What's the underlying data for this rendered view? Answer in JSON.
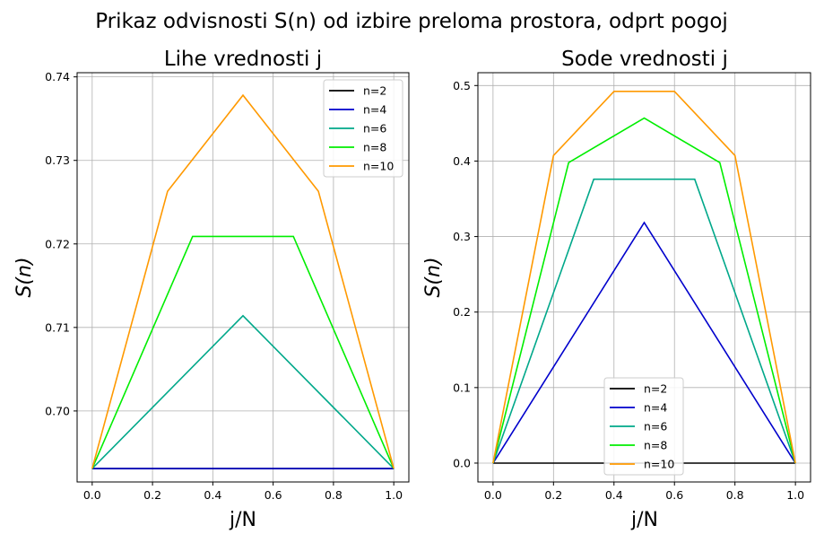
{
  "figure": {
    "suptitle": "Prikaz odvisnosti S(n) od izbire preloma prostora, odprt pogoj"
  },
  "chart_data": [
    {
      "type": "line",
      "title": "Lihe vrednosti j",
      "xlabel": "j/N",
      "ylabel": "S(n)",
      "xlim": [
        -0.05,
        1.05
      ],
      "ylim": [
        0.6915,
        0.7405
      ],
      "xticks": [
        "0.0",
        "0.2",
        "0.4",
        "0.6",
        "0.8",
        "1.0"
      ],
      "yticks": [
        "0.70",
        "0.71",
        "0.72",
        "0.73",
        "0.74"
      ],
      "ytick_values": [
        0.7,
        0.71,
        0.72,
        0.73,
        0.74
      ],
      "xtick_values": [
        0,
        0.2,
        0.4,
        0.6,
        0.8,
        1.0
      ],
      "grid": true,
      "legend_position": "top-right",
      "series": [
        {
          "name": "n=2",
          "color": "#000000",
          "x": [
            0,
            1
          ],
          "y": [
            0.6931,
            0.6931
          ]
        },
        {
          "name": "n=4",
          "color": "#0000cc",
          "x": [
            0,
            0.5,
            1
          ],
          "y": [
            0.6931,
            0.6931,
            0.6931
          ]
        },
        {
          "name": "n=6",
          "color": "#00a88a",
          "x": [
            0,
            0.5,
            1
          ],
          "y": [
            0.6931,
            0.7114,
            0.6931
          ]
        },
        {
          "name": "n=8",
          "color": "#00ee00",
          "x": [
            0,
            0.333,
            0.667,
            1
          ],
          "y": [
            0.6931,
            0.7209,
            0.7209,
            0.6931
          ]
        },
        {
          "name": "n=10",
          "color": "#ff9900",
          "x": [
            0,
            0.25,
            0.5,
            0.75,
            1
          ],
          "y": [
            0.6931,
            0.7263,
            0.7378,
            0.7263,
            0.6931
          ]
        }
      ]
    },
    {
      "type": "line",
      "title": "Sode vrednosti j",
      "xlabel": "j/N",
      "ylabel": "S(n)",
      "xlim": [
        -0.05,
        1.05
      ],
      "ylim": [
        -0.025,
        0.517
      ],
      "xticks": [
        "0.0",
        "0.2",
        "0.4",
        "0.6",
        "0.8",
        "1.0"
      ],
      "yticks": [
        "0.0",
        "0.1",
        "0.2",
        "0.3",
        "0.4",
        "0.5"
      ],
      "ytick_values": [
        0,
        0.1,
        0.2,
        0.3,
        0.4,
        0.5
      ],
      "xtick_values": [
        0,
        0.2,
        0.4,
        0.6,
        0.8,
        1.0
      ],
      "grid": true,
      "legend_position": "bottom-center",
      "series": [
        {
          "name": "n=2",
          "color": "#000000",
          "x": [
            0,
            0.5,
            1
          ],
          "y": [
            0,
            0,
            0
          ]
        },
        {
          "name": "n=4",
          "color": "#0000cc",
          "x": [
            0,
            0.5,
            1
          ],
          "y": [
            0,
            0.3185,
            0
          ]
        },
        {
          "name": "n=6",
          "color": "#00a88a",
          "x": [
            0,
            0.333,
            0.667,
            1
          ],
          "y": [
            0,
            0.3759,
            0.3759,
            0
          ]
        },
        {
          "name": "n=8",
          "color": "#00ee00",
          "x": [
            0,
            0.25,
            0.5,
            0.75,
            1
          ],
          "y": [
            0,
            0.3979,
            0.4568,
            0.3979,
            0
          ]
        },
        {
          "name": "n=10",
          "color": "#ff9900",
          "x": [
            0,
            0.2,
            0.4,
            0.6,
            0.8,
            1
          ],
          "y": [
            0,
            0.4073,
            0.4923,
            0.4923,
            0.4073,
            0
          ]
        }
      ]
    }
  ]
}
